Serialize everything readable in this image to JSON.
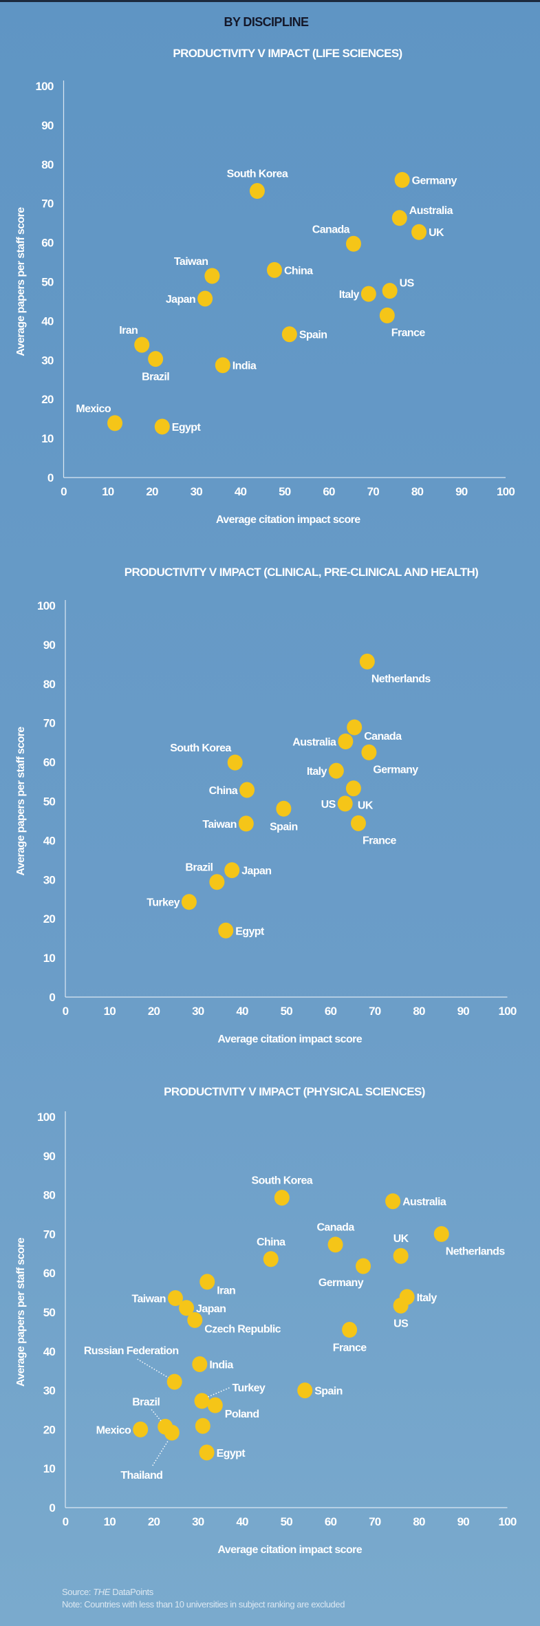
{
  "header": {
    "title": "BY DISCIPLINE"
  },
  "colors": {
    "background": "#6399c6",
    "point": "#f5c518",
    "text": "#ffffff",
    "axis": "#dce8f2"
  },
  "footer": {
    "source_prefix": "Source: ",
    "source_italic": "THE",
    "source_suffix": " DataPoints",
    "note": "Note: Countries with less than 10 universities in subject ranking are excluded"
  },
  "chart_data": [
    {
      "type": "scatter",
      "title": "PRODUCTIVITY V IMPACT (LIFE SCIENCES)",
      "xlabel": "Average citation impact score",
      "ylabel": "Average papers per staff score",
      "xlim": [
        0,
        100
      ],
      "ylim": [
        0,
        100
      ],
      "xticks": [
        0,
        10,
        20,
        30,
        40,
        50,
        60,
        70,
        80,
        90,
        100
      ],
      "yticks": [
        0,
        10,
        20,
        30,
        40,
        50,
        60,
        70,
        80,
        90,
        100
      ],
      "grid": false,
      "points": [
        {
          "label": "South Korea",
          "x": 43.8,
          "y": 73.2,
          "label_pos": "above"
        },
        {
          "label": "Germany",
          "x": 76.6,
          "y": 76.0,
          "label_pos": "right"
        },
        {
          "label": "Australia",
          "x": 76.0,
          "y": 66.3,
          "label_pos": "right-above"
        },
        {
          "label": "UK",
          "x": 80.4,
          "y": 62.7,
          "label_pos": "right"
        },
        {
          "label": "Canada",
          "x": 65.6,
          "y": 59.7,
          "label_pos": "above-left"
        },
        {
          "label": "China",
          "x": 47.7,
          "y": 53.0,
          "label_pos": "right"
        },
        {
          "label": "Taiwan",
          "x": 33.6,
          "y": 51.5,
          "label_pos": "above-left"
        },
        {
          "label": "Japan",
          "x": 32.0,
          "y": 45.7,
          "label_pos": "left"
        },
        {
          "label": "Italy",
          "x": 69.0,
          "y": 46.9,
          "label_pos": "left"
        },
        {
          "label": "US",
          "x": 73.8,
          "y": 47.7,
          "label_pos": "right-above"
        },
        {
          "label": "France",
          "x": 73.2,
          "y": 41.4,
          "label_pos": "below-right"
        },
        {
          "label": "Spain",
          "x": 51.1,
          "y": 36.6,
          "label_pos": "right"
        },
        {
          "label": "Iran",
          "x": 17.7,
          "y": 33.9,
          "label_pos": "above-left"
        },
        {
          "label": "Brazil",
          "x": 20.8,
          "y": 30.3,
          "label_pos": "below"
        },
        {
          "label": "India",
          "x": 36.0,
          "y": 28.7,
          "label_pos": "right"
        },
        {
          "label": "Mexico",
          "x": 11.6,
          "y": 13.9,
          "label_pos": "above-left"
        },
        {
          "label": "Egypt",
          "x": 22.3,
          "y": 13.0,
          "label_pos": "right"
        }
      ]
    },
    {
      "type": "scatter",
      "title": "PRODUCTIVITY V IMPACT (CLINICAL, PRE-CLINICAL AND HEALTH)",
      "xlabel": "Average citation impact score",
      "ylabel": "Average papers per staff score",
      "xlim": [
        0,
        100
      ],
      "ylim": [
        0,
        100
      ],
      "xticks": [
        0,
        10,
        20,
        30,
        40,
        50,
        60,
        70,
        80,
        90,
        100
      ],
      "yticks": [
        0,
        10,
        20,
        30,
        40,
        50,
        60,
        70,
        80,
        90,
        100
      ],
      "grid": false,
      "points": [
        {
          "label": "Netherlands",
          "x": 68.3,
          "y": 85.7,
          "label_pos": "below-right"
        },
        {
          "label": "Canada",
          "x": 65.4,
          "y": 68.9,
          "label_pos": "right-below"
        },
        {
          "label": "Australia",
          "x": 63.4,
          "y": 65.3,
          "label_pos": "left"
        },
        {
          "label": "Germany",
          "x": 68.7,
          "y": 62.5,
          "label_pos": "below-right"
        },
        {
          "label": "South Korea",
          "x": 38.4,
          "y": 59.9,
          "label_pos": "above-left"
        },
        {
          "label": "Italy",
          "x": 61.3,
          "y": 57.8,
          "label_pos": "left"
        },
        {
          "label": "UK",
          "x": 65.2,
          "y": 53.3,
          "label_pos": "below-right"
        },
        {
          "label": "China",
          "x": 41.1,
          "y": 52.9,
          "label_pos": "left"
        },
        {
          "label": "US",
          "x": 63.3,
          "y": 49.4,
          "label_pos": "left"
        },
        {
          "label": "Spain",
          "x": 49.4,
          "y": 48.1,
          "label_pos": "below"
        },
        {
          "label": "Taiwan",
          "x": 40.9,
          "y": 44.3,
          "label_pos": "left"
        },
        {
          "label": "France",
          "x": 66.3,
          "y": 44.4,
          "label_pos": "below-right"
        },
        {
          "label": "Japan",
          "x": 37.7,
          "y": 32.4,
          "label_pos": "right"
        },
        {
          "label": "Brazil",
          "x": 34.3,
          "y": 29.4,
          "label_pos": "above-left"
        },
        {
          "label": "Turkey",
          "x": 28.0,
          "y": 24.3,
          "label_pos": "left"
        },
        {
          "label": "Egypt",
          "x": 36.3,
          "y": 17.0,
          "label_pos": "right"
        }
      ]
    },
    {
      "type": "scatter",
      "title": "PRODUCTIVITY V IMPACT (PHYSICAL SCIENCES)",
      "xlabel": "Average citation impact score",
      "ylabel": "Average papers per staff score",
      "xlim": [
        0,
        100
      ],
      "ylim": [
        0,
        100
      ],
      "xticks": [
        0,
        10,
        20,
        30,
        40,
        50,
        60,
        70,
        80,
        90,
        100
      ],
      "yticks": [
        0,
        10,
        20,
        30,
        40,
        50,
        60,
        70,
        80,
        90,
        100
      ],
      "grid": false,
      "points": [
        {
          "label": "South Korea",
          "x": 49.0,
          "y": 79.3,
          "label_pos": "above"
        },
        {
          "label": "Australia",
          "x": 74.1,
          "y": 78.4,
          "label_pos": "right"
        },
        {
          "label": "Netherlands",
          "x": 85.1,
          "y": 70.0,
          "label_pos": "below-right"
        },
        {
          "label": "Canada",
          "x": 61.1,
          "y": 67.3,
          "label_pos": "above"
        },
        {
          "label": "China",
          "x": 46.5,
          "y": 63.6,
          "label_pos": "above"
        },
        {
          "label": "UK",
          "x": 75.9,
          "y": 64.4,
          "label_pos": "above"
        },
        {
          "label": "Germany",
          "x": 67.4,
          "y": 61.8,
          "label_pos": "below-left"
        },
        {
          "label": "Iran",
          "x": 32.1,
          "y": 57.8,
          "label_pos": "right-below"
        },
        {
          "label": "Taiwan",
          "x": 24.9,
          "y": 53.6,
          "label_pos": "left"
        },
        {
          "label": "Italy",
          "x": 77.3,
          "y": 53.9,
          "label_pos": "right"
        },
        {
          "label": "US",
          "x": 75.9,
          "y": 51.7,
          "label_pos": "below"
        },
        {
          "label": "Japan",
          "x": 27.4,
          "y": 51.1,
          "label_pos": "right"
        },
        {
          "label": "Czech Republic",
          "x": 29.3,
          "y": 48.0,
          "label_pos": "right-below"
        },
        {
          "label": "France",
          "x": 64.3,
          "y": 45.5,
          "label_pos": "below"
        },
        {
          "label": "India",
          "x": 30.4,
          "y": 36.7,
          "label_pos": "right"
        },
        {
          "label": "Russian Federation",
          "x": 24.7,
          "y": 32.2,
          "label_pos": "leader-above-left"
        },
        {
          "label": "Spain",
          "x": 54.2,
          "y": 30.0,
          "label_pos": "right"
        },
        {
          "label": "Turkey",
          "x": 30.9,
          "y": 27.3,
          "label_pos": "leader-above-right"
        },
        {
          "label": "Poland",
          "x": 33.9,
          "y": 26.2,
          "label_pos": "right-below"
        },
        {
          "label": "",
          "x": 31.1,
          "y": 20.9,
          "label_pos": "none"
        },
        {
          "label": "Brazil",
          "x": 22.6,
          "y": 20.7,
          "label_pos": "leader-above"
        },
        {
          "label": "Mexico",
          "x": 17.0,
          "y": 20.0,
          "label_pos": "left"
        },
        {
          "label": "Thailand",
          "x": 24.1,
          "y": 19.2,
          "label_pos": "leader-below"
        },
        {
          "label": "Egypt",
          "x": 32.0,
          "y": 14.1,
          "label_pos": "right"
        }
      ]
    }
  ]
}
